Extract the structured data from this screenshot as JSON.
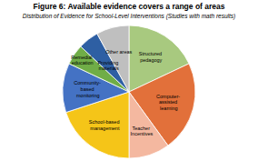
{
  "chart_data": {
    "type": "pie",
    "title": "Figure 6: Available evidence covers a range of areas",
    "subtitle": "Distribution of Evidence for School-Level Interventions (Studies with math results)",
    "categories": [
      "Structured\npedagogy",
      "Computer-\nassisted\nlearning",
      "Teacher\nIncentives",
      "School-based\nmanagement",
      "Community-\nbased\nmonitoring",
      "Remedial\neducation",
      "Providing\nmaterials",
      "Other areas"
    ],
    "values": [
      18,
      22,
      10,
      20,
      12,
      5,
      5,
      8
    ],
    "colors": [
      "#a8c97f",
      "#e2703a",
      "#f4b8a0",
      "#f5c518",
      "#4472c4",
      "#70ad47",
      "#2e5fa3",
      "#bfbfbf"
    ]
  }
}
